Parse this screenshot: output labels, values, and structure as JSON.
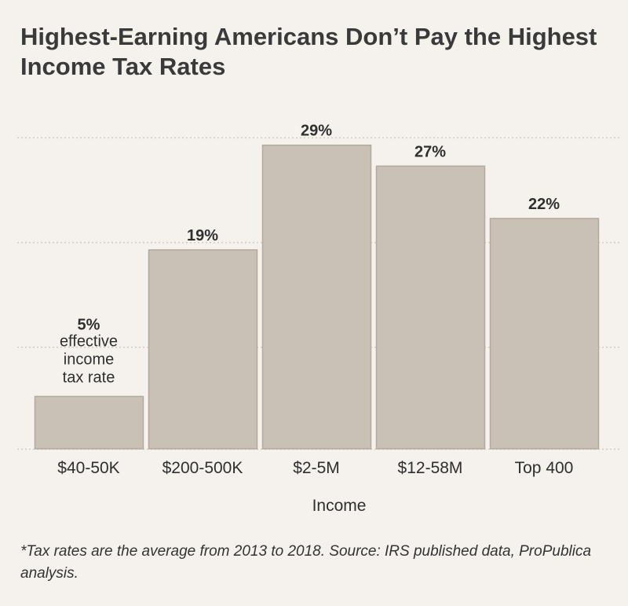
{
  "title": "Highest-Earning Americans Don’t Pay the Highest Income Tax Rates",
  "footnote": "*Tax rates are the average from 2013 to 2018. Source: IRS published data, ProPublica analysis.",
  "colors": {
    "background": "#f5f1ec",
    "bar_fill": "#c9c0b6",
    "bar_stroke": "#b3a9a0",
    "gridline": "#d3cbc3",
    "text": "#2f2f2f"
  },
  "chart_data": {
    "type": "bar",
    "title": "Highest-Earning Americans Don’t Pay the Highest Income Tax Rates",
    "xlabel": "Income",
    "ylabel": "",
    "categories": [
      "$40-50K",
      "$200-500K",
      "$2-5M",
      "$12-58M",
      "Top 400"
    ],
    "values": [
      5,
      19,
      29,
      27,
      22
    ],
    "value_labels": [
      "5%",
      "19%",
      "29%",
      "27%",
      "22%"
    ],
    "first_bar_annotation": [
      "effective",
      "income",
      "tax rate"
    ],
    "ylim": [
      0,
      30
    ],
    "grid": true,
    "gridline_values": [
      10,
      20,
      30
    ],
    "legend": "none"
  }
}
